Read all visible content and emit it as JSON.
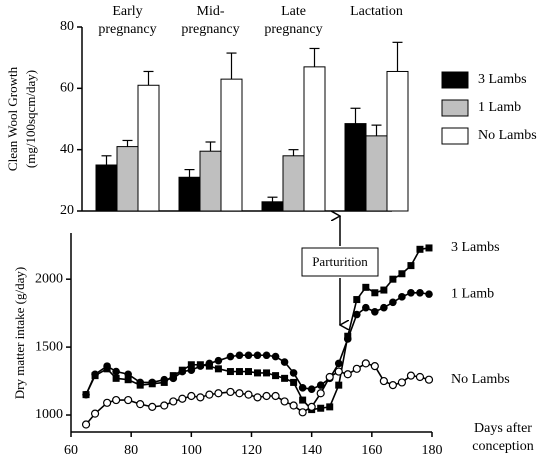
{
  "chart_data": [
    {
      "type": "bar",
      "y_label": "Clean Wool Growth (mg/100sqcm/day)",
      "categories": [
        "Early pregnancy",
        "Mid-pregnancy",
        "Late pregnancy",
        "Lactation"
      ],
      "series": [
        {
          "name": "3 Lambs",
          "color": "#000000",
          "values": [
            35,
            31,
            23,
            48.5
          ],
          "errors": [
            3,
            2.5,
            1.5,
            5
          ]
        },
        {
          "name": "1 Lamb",
          "color": "#bfbfbf",
          "values": [
            41,
            39.5,
            38,
            44.5
          ],
          "errors": [
            2,
            3,
            2,
            3.5
          ]
        },
        {
          "name": "No Lambs",
          "color": "#ffffff",
          "values": [
            61,
            63,
            67,
            65.5
          ],
          "errors": [
            4.5,
            8.5,
            6,
            9.5
          ]
        }
      ],
      "ylim": [
        20,
        80
      ],
      "yticks": [
        20,
        40,
        60,
        80
      ],
      "legend": "right"
    },
    {
      "type": "line",
      "y_label": "Dry matter intake (g/day)",
      "x_label": "Days after conception",
      "annotation": "Parturition",
      "x": [
        65,
        68,
        72,
        75,
        79,
        83,
        87,
        91,
        94,
        97,
        100,
        103,
        106,
        109,
        113,
        116,
        119,
        122,
        125,
        128,
        131,
        134,
        137,
        140,
        143,
        146,
        149,
        152,
        155,
        158,
        161,
        164,
        167,
        170,
        173,
        176,
        179
      ],
      "series": [
        {
          "name": "3 Lambs",
          "color": "#000000",
          "marker": "square",
          "values": [
            1150,
            1290,
            1340,
            1270,
            1260,
            1220,
            1230,
            1240,
            1290,
            1330,
            1370,
            1370,
            1360,
            1340,
            1320,
            1320,
            1320,
            1310,
            1310,
            1290,
            1270,
            1240,
            1110,
            1040,
            1050,
            1060,
            1220,
            1580,
            1850,
            1940,
            1900,
            1920,
            2000,
            2040,
            2100,
            2220,
            2230
          ]
        },
        {
          "name": "1 Lamb",
          "color": "#000000",
          "marker": "circle",
          "values": [
            1150,
            1300,
            1360,
            1320,
            1300,
            1240,
            1240,
            1260,
            1270,
            1320,
            1330,
            1360,
            1380,
            1400,
            1430,
            1440,
            1440,
            1440,
            1440,
            1430,
            1390,
            1310,
            1200,
            1190,
            1220,
            1270,
            1380,
            1560,
            1740,
            1790,
            1760,
            1790,
            1830,
            1870,
            1900,
            1900,
            1890
          ]
        },
        {
          "name": "No Lambs",
          "color": "#000000",
          "marker": "open-circle",
          "values": [
            930,
            1010,
            1090,
            1110,
            1110,
            1080,
            1060,
            1070,
            1100,
            1120,
            1140,
            1130,
            1150,
            1160,
            1170,
            1160,
            1150,
            1130,
            1140,
            1140,
            1100,
            1070,
            1020,
            1060,
            1160,
            1280,
            1320,
            1300,
            1340,
            1380,
            1360,
            1250,
            1220,
            1240,
            1290,
            1280,
            1260
          ]
        }
      ],
      "xlim": [
        60,
        180
      ],
      "xticks": [
        60,
        80,
        100,
        120,
        140,
        160,
        180
      ],
      "ylim": [
        875,
        2340
      ],
      "yticks": [
        1000,
        1500,
        2000
      ]
    }
  ]
}
